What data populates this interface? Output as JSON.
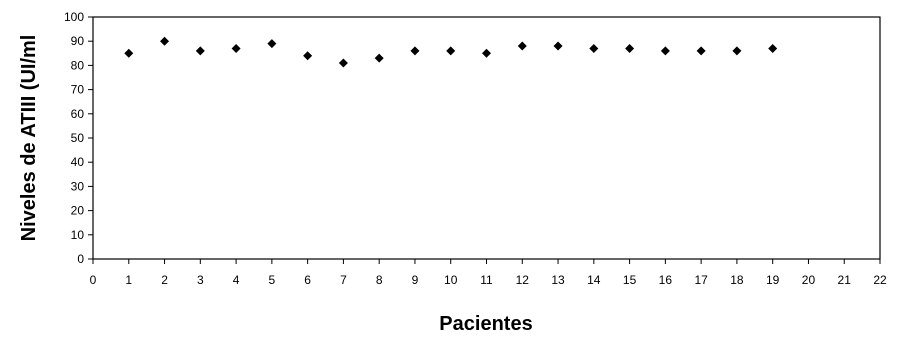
{
  "chart_data": {
    "type": "scatter",
    "title": "",
    "xlabel": "Pacientes",
    "ylabel": "Niveles de ATIII (UI/ml",
    "xlim": [
      0,
      22
    ],
    "ylim": [
      0,
      100
    ],
    "x_ticks": [
      "0",
      "1",
      "2",
      "3",
      "4",
      "5",
      "6",
      "7",
      "8",
      "9",
      "10",
      "11",
      "12",
      "13",
      "14",
      "15",
      "16",
      "17",
      "18",
      "19",
      "20",
      "21",
      "22"
    ],
    "y_ticks": [
      "0",
      "10",
      "20",
      "30",
      "40",
      "50",
      "60",
      "70",
      "80",
      "90",
      "100"
    ],
    "grid": false,
    "legend": "none",
    "marker": "diamond",
    "marker_color": "#000000",
    "series": [
      {
        "x": [
          1,
          2,
          3,
          4,
          5,
          6,
          7,
          8,
          9,
          10,
          11,
          12,
          13,
          14,
          15,
          16,
          17,
          18,
          19
        ],
        "y": [
          85,
          90,
          86,
          87,
          89,
          84,
          81,
          83,
          86,
          86,
          85,
          88,
          88,
          87,
          87,
          86,
          86,
          86,
          87
        ]
      }
    ]
  }
}
